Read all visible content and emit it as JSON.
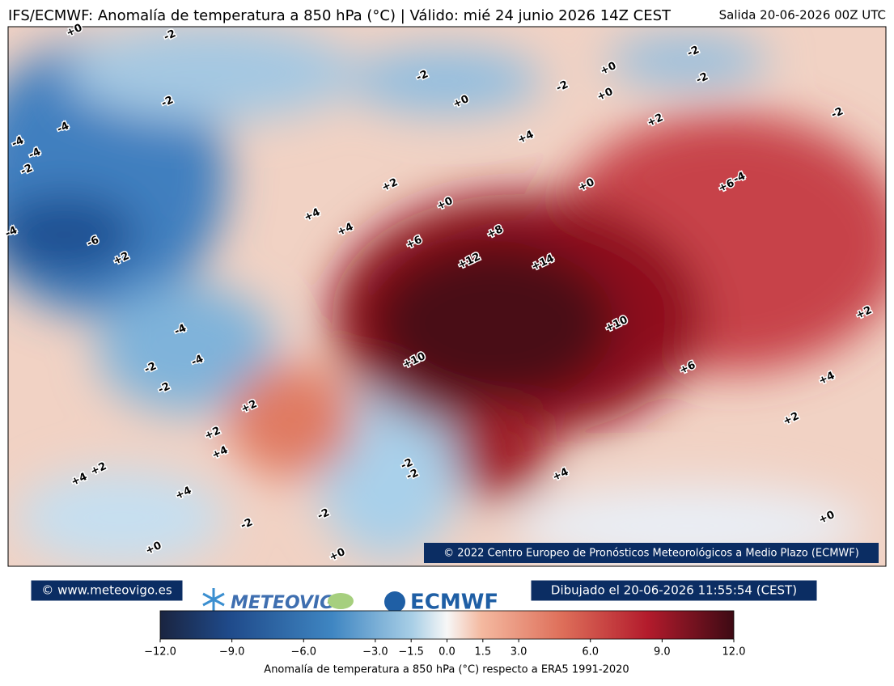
{
  "map": {
    "title": "IFS/ECMWF: Anomalía de temperatura a 850 hPa (°C) | Válido: mié 24 junio 2026 14Z CEST",
    "run": "Salida 20-06-2026 00Z UTC",
    "copyright": "© 2022 Centro Europeo de Pronósticos Meteorológicos a Medio Plazo (ECMWF)",
    "contour_labels": [
      "+0",
      "-2",
      "-2",
      "-2",
      "+0",
      "-2",
      "-2",
      "+0",
      "-2",
      "+0",
      "-2",
      "-4",
      "+2",
      "+4",
      "-4",
      "-4",
      "-2",
      "+2",
      "+0",
      "+6",
      "-4",
      "+0",
      "+4",
      "-4",
      "+4",
      "-6",
      "+6",
      "+8",
      "+2",
      "+12",
      "+14",
      "+10",
      "+2",
      "-4",
      "-4",
      "+10",
      "-2",
      "+6",
      "-2",
      "+4",
      "+2",
      "+2",
      "+2",
      "+4",
      "+2",
      "+4",
      "-2",
      "-2",
      "+4",
      "+4",
      "-2",
      "-2",
      "+0",
      "+0",
      "+0"
    ]
  },
  "footer": {
    "site": "© www.meteovigo.es",
    "logo_meteovigo": "METEOVIGO",
    "logo_ecmwf": "ECMWF",
    "drawn": "Dibujado el 20-06-2026 11:55:54 (CEST)"
  },
  "colorbar": {
    "label": "Anomalía de temperatura a 850 hPa (°C) respecto a ERA5 1991-2020",
    "lim": [
      -12,
      12
    ],
    "ticks": [
      {
        "value": -12,
        "label": "−12.0"
      },
      {
        "value": -9,
        "label": "−9.0"
      },
      {
        "value": -6,
        "label": "−6.0"
      },
      {
        "value": -3,
        "label": "−3.0"
      },
      {
        "value": -1.5,
        "label": "−1.5"
      },
      {
        "value": 0,
        "label": "0.0"
      },
      {
        "value": 1.5,
        "label": "1.5"
      },
      {
        "value": 3,
        "label": "3.0"
      },
      {
        "value": 6,
        "label": "6.0"
      },
      {
        "value": 9,
        "label": "9.0"
      },
      {
        "value": 12,
        "label": "12.0"
      }
    ]
  }
}
